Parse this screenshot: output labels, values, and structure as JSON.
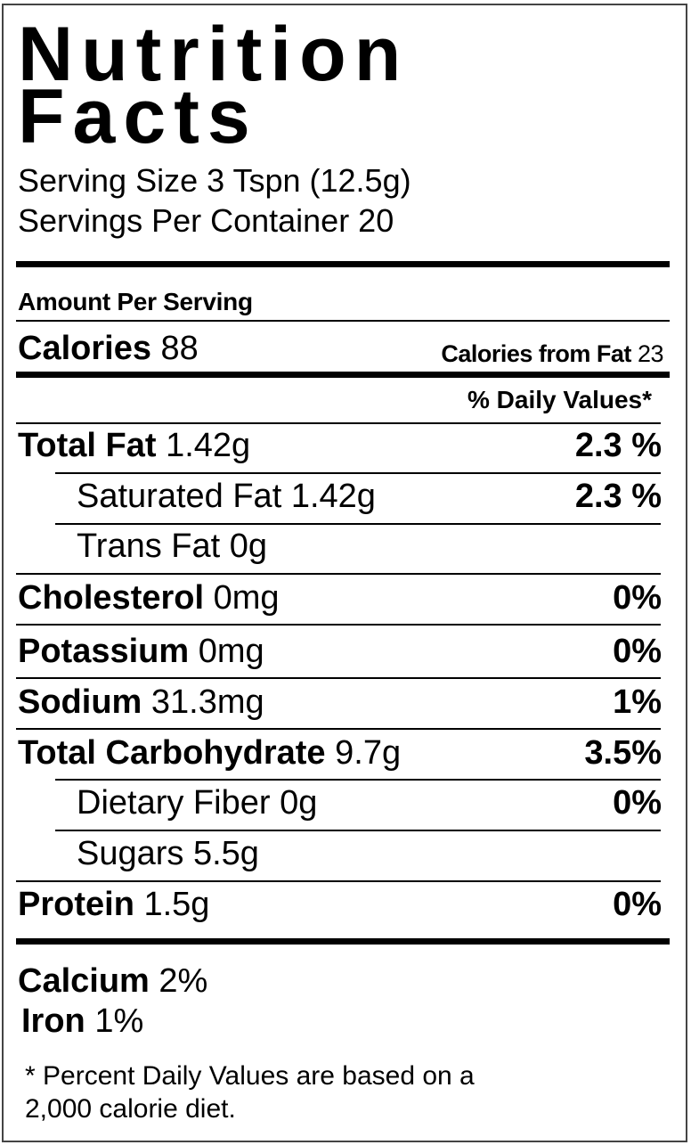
{
  "title_line1": "Nutrition",
  "title_line2": "Facts",
  "serving_size": "Serving Size 3 Tspn  (12.5g)",
  "servings_per_container": "Servings Per Container 20",
  "amount_per_serving": "Amount Per Serving",
  "calories": {
    "label": "Calories",
    "value": "88"
  },
  "calories_from_fat": {
    "label": "Calories from Fat",
    "value": "23"
  },
  "daily_values_header": "% Daily Values*",
  "nutrients": [
    {
      "label": "Total Fat",
      "amount": "1.42g",
      "percent": "2.3 %",
      "bold": true,
      "indent": false
    },
    {
      "label": "Saturated Fat",
      "amount": "1.42g",
      "percent": "2.3 %",
      "bold": false,
      "indent": true
    },
    {
      "label": "Trans Fat",
      "amount": "0g",
      "percent": "",
      "bold": false,
      "indent": true
    },
    {
      "label": "Cholesterol",
      "amount": "0mg",
      "percent": "0%",
      "bold": true,
      "indent": false
    },
    {
      "label": "Potassium",
      "amount": "0mg",
      "percent": "0%",
      "bold": true,
      "indent": false
    },
    {
      "label": "Sodium",
      "amount": "31.3mg",
      "percent": "1%",
      "bold": true,
      "indent": false
    },
    {
      "label": "Total Carbohydrate",
      "amount": "9.7g",
      "percent": "3.5%",
      "bold": true,
      "indent": false
    },
    {
      "label": "Dietary Fiber",
      "amount": "0g",
      "percent": "0%",
      "bold": false,
      "indent": true
    },
    {
      "label": "Sugars",
      "amount": "5.5g",
      "percent": "",
      "bold": false,
      "indent": true
    },
    {
      "label": "Protein",
      "amount": "1.5g",
      "percent": "0%",
      "bold": true,
      "indent": false
    }
  ],
  "vitamins": [
    {
      "label": "Calcium",
      "value": "2%"
    },
    {
      "label": "Iron",
      "value": "1%"
    }
  ],
  "footnote_line1": "* Percent Daily Values are based on a",
  "footnote_line2": "2,000 calorie diet."
}
